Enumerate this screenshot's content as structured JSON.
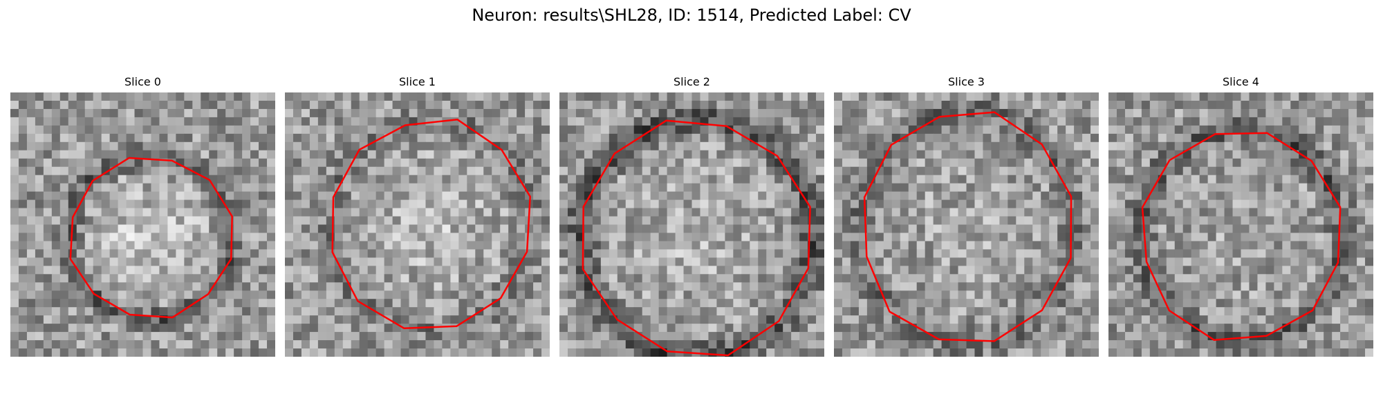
{
  "title": "Neuron: results\\SHL28, ID: 1514, Predicted Label: CV",
  "contour_color": "#ff0000",
  "panels": [
    {
      "title": "Slice 0"
    },
    {
      "title": "Slice 1"
    },
    {
      "title": "Slice 2"
    },
    {
      "title": "Slice 3"
    },
    {
      "title": "Slice 4"
    }
  ]
}
